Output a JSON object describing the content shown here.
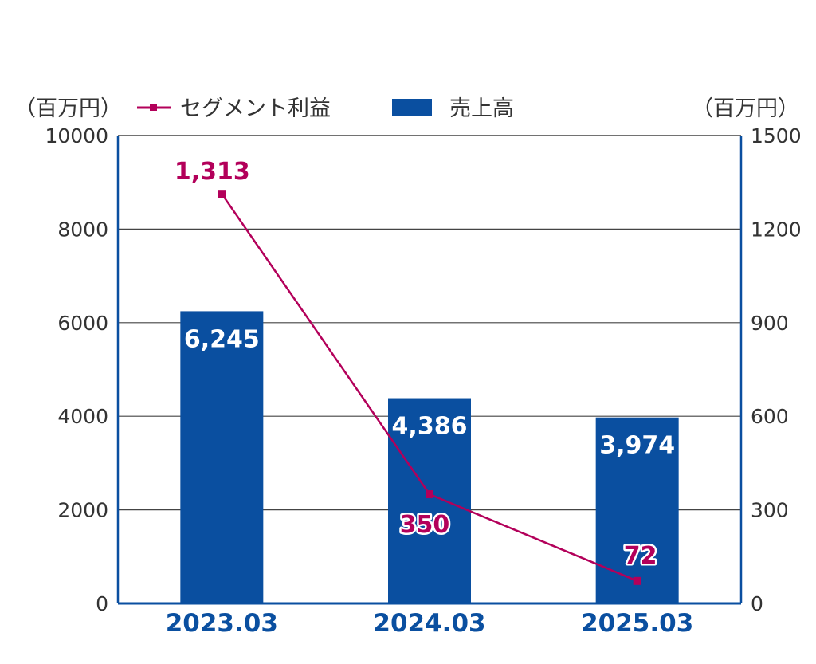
{
  "chart_data": {
    "type": "bar",
    "categories": [
      "2023.03",
      "2024.03",
      "2025.03"
    ],
    "series": [
      {
        "name": "売上高",
        "type": "bar",
        "axis": "left",
        "values": [
          6245,
          4386,
          3974
        ],
        "labels": [
          "6,245",
          "4,386",
          "3,974"
        ]
      },
      {
        "name": "セグメント利益",
        "type": "line",
        "axis": "right",
        "values": [
          1313,
          350,
          72
        ],
        "labels": [
          "1,313",
          "350",
          "72"
        ]
      }
    ],
    "left_axis": {
      "unit": "（百万円）",
      "ylim": [
        0,
        10000
      ],
      "ticks": [
        "0",
        "2000",
        "4000",
        "6000",
        "8000",
        "10000"
      ]
    },
    "right_axis": {
      "unit": "（百万円）",
      "ylim": [
        0,
        1500
      ],
      "ticks": [
        "0",
        "300",
        "600",
        "900",
        "1200",
        "1500"
      ]
    },
    "grid": true,
    "legend": "top"
  },
  "colors": {
    "bar": "#0a4fa0",
    "line": "#b3005a",
    "axis": "#0a4fa0",
    "grid": "#444444"
  }
}
